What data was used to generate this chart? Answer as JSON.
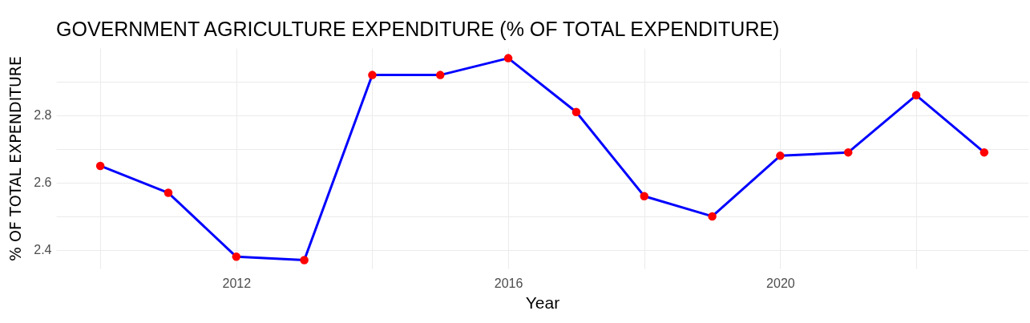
{
  "chart_data": {
    "type": "line",
    "title": "GOVERNMENT AGRICULTURE EXPENDITURE (% OF TOTAL EXPENDITURE)",
    "xlabel": "Year",
    "ylabel": "% OF TOTAL EXPENDITURE",
    "x": [
      2010,
      2011,
      2012,
      2013,
      2014,
      2015,
      2016,
      2017,
      2018,
      2019,
      2020,
      2021,
      2022,
      2023
    ],
    "series": [
      {
        "color": "#0000ff",
        "values": [
          2.65,
          2.57,
          2.38,
          2.37,
          2.92,
          2.92,
          2.97,
          2.81,
          2.56,
          2.5,
          2.68,
          2.69,
          2.86,
          2.69
        ]
      },
      {
        "type": "scatter",
        "marker": "circle",
        "color": "#ff0000",
        "values": [
          2.65,
          2.57,
          2.38,
          2.37,
          2.92,
          2.92,
          2.97,
          2.81,
          2.56,
          2.5,
          2.68,
          2.69,
          2.86,
          2.69
        ]
      }
    ],
    "grid": true,
    "xlim": [
      2009.35,
      2023.65
    ],
    "xticks": [
      {
        "value": 2010,
        "label": null
      },
      2012,
      {
        "value": 2014,
        "label": null
      },
      2016,
      {
        "value": 2018,
        "label": null
      },
      2020,
      {
        "value": 2022,
        "label": null
      }
    ],
    "ylim": [
      2.345,
      3.0
    ],
    "yticks": [
      2.4,
      {
        "value": 2.5,
        "label": null
      },
      2.6,
      {
        "value": 2.7,
        "label": null
      },
      2.8,
      {
        "value": 2.9,
        "label": null
      }
    ]
  }
}
